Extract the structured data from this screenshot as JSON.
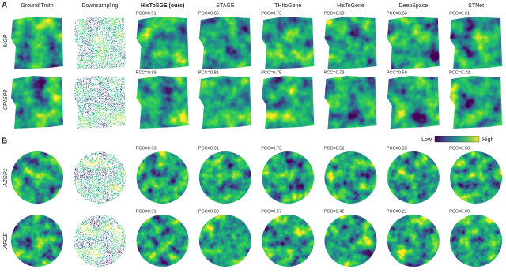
{
  "columns": [
    "Ground Truth",
    "Downsampling",
    "HisToSGE (ours)",
    "STAGE",
    "THItoGene",
    "HisToGene",
    "DeepSpace",
    "STNet"
  ],
  "panels": [
    {
      "label": "A",
      "rows": [
        {
          "gene": "MGP",
          "pcc": [
            "PCC=0.91",
            "PCC=0.85",
            "PCC=0.73",
            "PCC=0.68",
            "PCC=0.63",
            "PCC=0.21"
          ]
        },
        {
          "gene": "CRISP3",
          "pcc": [
            "PCC=0.89",
            "PCC=0.81",
            "PCC=0.75",
            "PCC=0.73",
            "PCC=0.59",
            "PCC=0.32"
          ]
        }
      ]
    },
    {
      "label": "B",
      "rows": [
        {
          "gene": "AZGP1",
          "pcc": [
            "PCC=0.93",
            "PCC=0.91",
            "PCC=0.73",
            "PCC=0.51",
            "PCC=0.33",
            "PCC=0.50"
          ]
        },
        {
          "gene": "APOE",
          "pcc": [
            "PCC=0.91",
            "PCC=0.88",
            "PCC=0.57",
            "PCC=0.42",
            "PCC=0.21",
            "PCC=0.09"
          ]
        }
      ]
    }
  ],
  "colorbar": {
    "low": "Low",
    "high": "High"
  }
}
